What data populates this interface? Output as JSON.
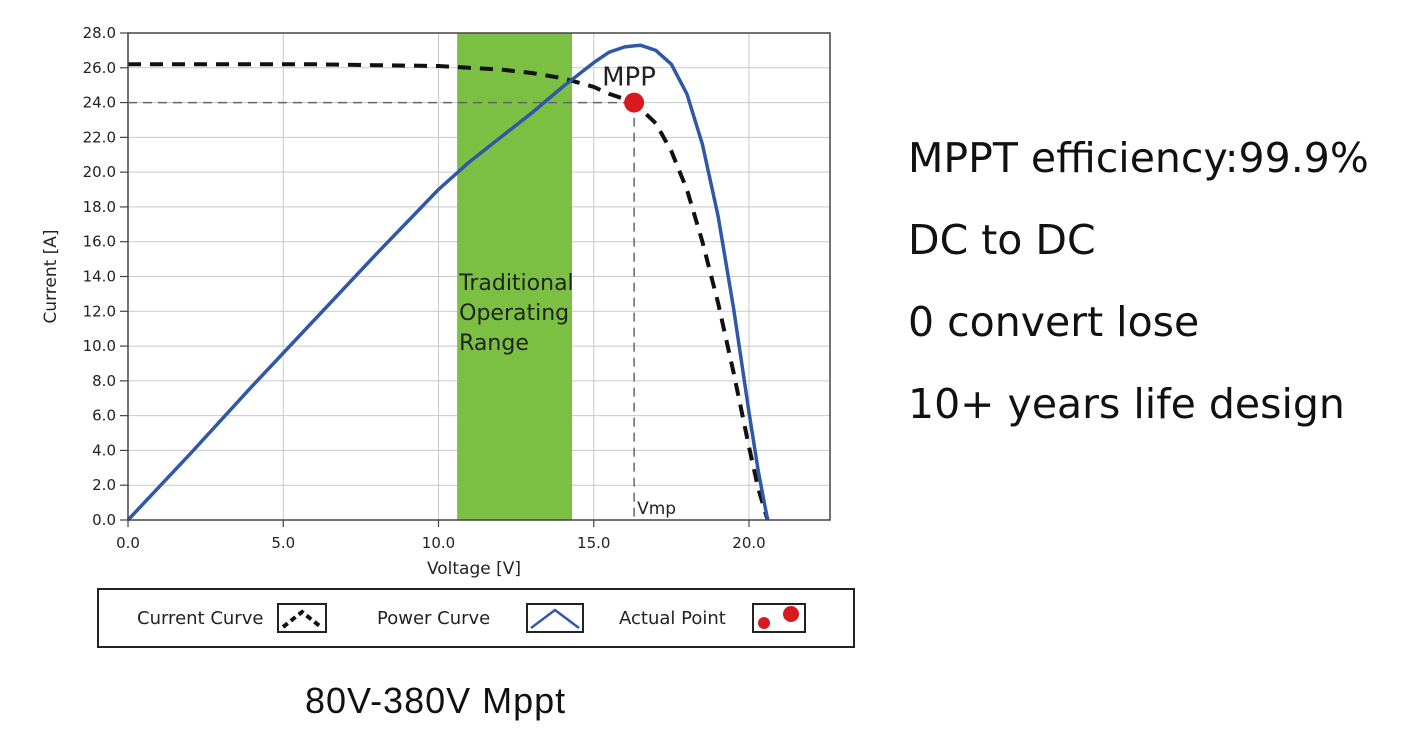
{
  "chart_data": {
    "type": "line",
    "xlabel": "Voltage [V]",
    "ylabel": "Current [A]",
    "xlim": [
      0,
      22.5
    ],
    "ylim": [
      0,
      28
    ],
    "x_ticks": [
      "0.0",
      "5.0",
      "10.0",
      "15.0",
      "20.0"
    ],
    "y_ticks": [
      "0.0",
      "2.0",
      "4.0",
      "6.0",
      "8.0",
      "10.0",
      "12.0",
      "14.0",
      "16.0",
      "18.0",
      "20.0",
      "22.0",
      "24.0",
      "26.0",
      "28.0"
    ],
    "grid": true,
    "series": [
      {
        "name": "Current Curve",
        "style": "dashed",
        "color": "#111111",
        "x": [
          0,
          2,
          4,
          6,
          8,
          10,
          12,
          13,
          14,
          15,
          15.5,
          16,
          16.3,
          17,
          17.5,
          18,
          18.5,
          19,
          19.5,
          20,
          20.3,
          20.6
        ],
        "y": [
          26.2,
          26.2,
          26.2,
          26.2,
          26.15,
          26.1,
          25.9,
          25.7,
          25.4,
          24.9,
          24.5,
          24.2,
          24.0,
          22.8,
          21.2,
          19.0,
          16.0,
          12.5,
          8.5,
          4.2,
          1.8,
          0
        ]
      },
      {
        "name": "Power Curve",
        "style": "solid",
        "color": "#2f58a8",
        "x": [
          0,
          2,
          4,
          6,
          8,
          10,
          11,
          12,
          13,
          14,
          14.5,
          15,
          15.5,
          16,
          16.5,
          17,
          17.5,
          18,
          18.5,
          19,
          19.5,
          20,
          20.3,
          20.6
        ],
        "y": [
          0,
          3.8,
          7.7,
          11.5,
          15.3,
          19.0,
          20.6,
          22.0,
          23.4,
          24.9,
          25.6,
          26.3,
          26.9,
          27.2,
          27.3,
          27.0,
          26.2,
          24.5,
          21.6,
          17.5,
          12.2,
          6.2,
          2.8,
          0
        ]
      }
    ],
    "shaded_region": {
      "x": [
        10.6,
        14.3
      ],
      "color": "#7bc043",
      "label_lines": [
        "Traditional",
        "Operating",
        "Range"
      ]
    },
    "mpp": {
      "x": 16.3,
      "y": 24.0,
      "label": "MPP",
      "color": "#d71920"
    },
    "vmp_label": "Vmp",
    "legend": {
      "position": "bottom",
      "items": [
        {
          "label": "Current Curve",
          "icon": "dashed-peak-icon"
        },
        {
          "label": "Power Curve",
          "icon": "solid-peak-icon"
        },
        {
          "label": "Actual Point",
          "icon": "red-dots-icon"
        }
      ]
    }
  },
  "caption": "80V-380V Mppt",
  "features": [
    "MPPT efficiency:99.9%",
    "DC to DC",
    "0 convert lose",
    "10+ years life design"
  ]
}
